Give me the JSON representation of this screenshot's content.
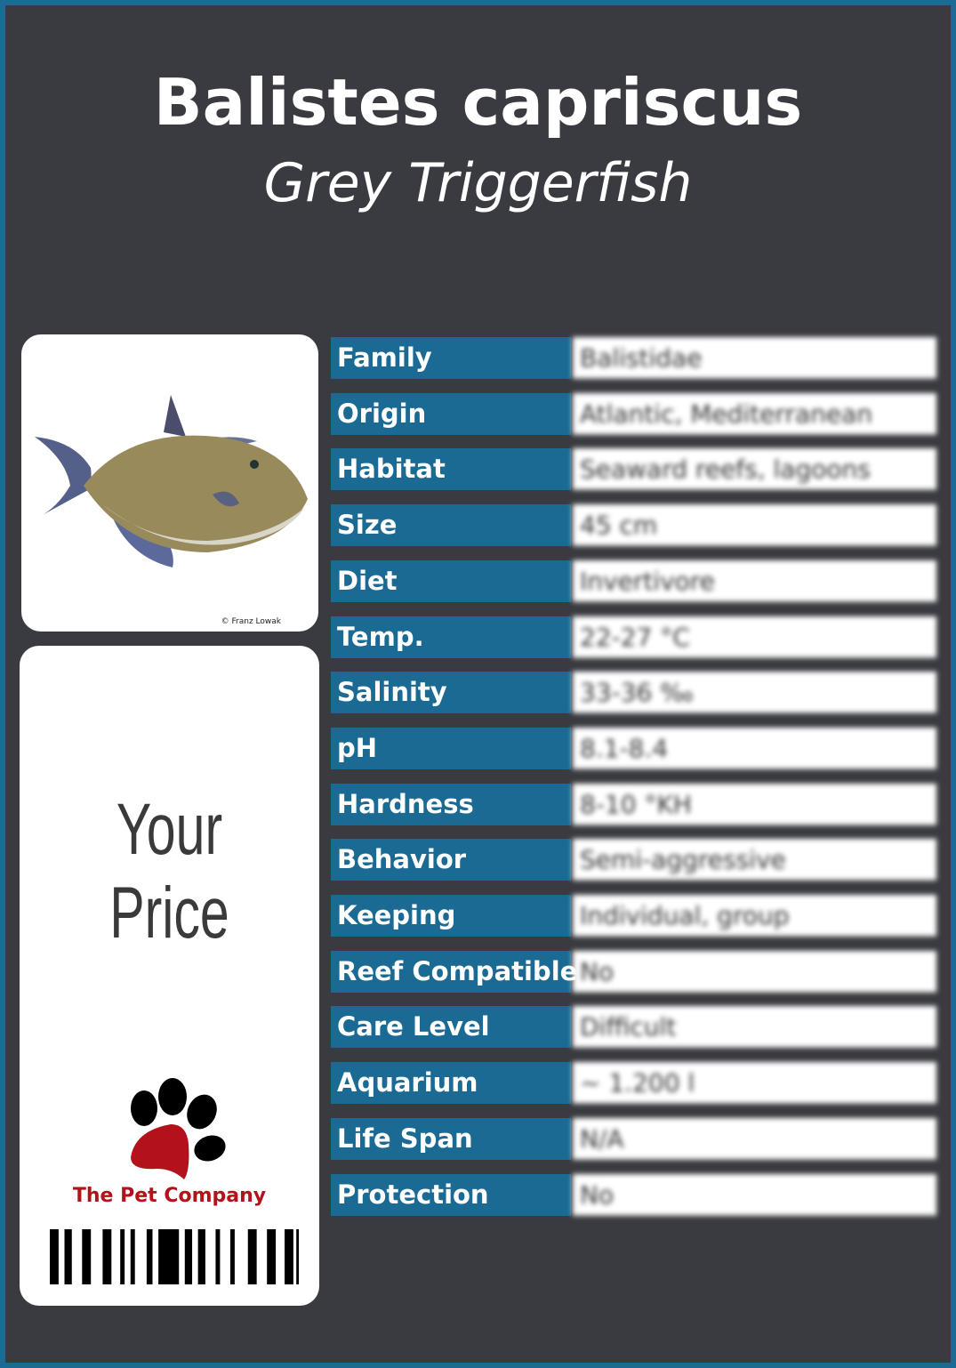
{
  "title": "Balistes capriscus",
  "subtitle": "Grey Triggerfish",
  "photo": {
    "credit": "© Franz Lowak",
    "icon": "fish-photo"
  },
  "price_label": "Your Price",
  "brand": {
    "name": "The Pet Company",
    "icon": "paw-logo",
    "colors": {
      "paw": "#000000",
      "pad": "#b3121b"
    }
  },
  "colors": {
    "border": "#1d6a95",
    "background": "#3a3b40",
    "label": "#1b6a94"
  },
  "rows": [
    {
      "label": "Family",
      "value": "Balistidae"
    },
    {
      "label": "Origin",
      "value": "Atlantic, Mediterranean"
    },
    {
      "label": "Habitat",
      "value": "Seaward reefs, lagoons"
    },
    {
      "label": "Size",
      "value": "45 cm"
    },
    {
      "label": "Diet",
      "value": "Invertivore"
    },
    {
      "label": "Temp.",
      "value": "22-27 °C"
    },
    {
      "label": "Salinity",
      "value": "33-36 ‰"
    },
    {
      "label": "pH",
      "value": "8.1-8.4"
    },
    {
      "label": "Hardness",
      "value": "8-10 °KH"
    },
    {
      "label": "Behavior",
      "value": "Semi-aggressive"
    },
    {
      "label": "Keeping",
      "value": "Individual, group"
    },
    {
      "label": "Reef Compatible",
      "value": "No"
    },
    {
      "label": "Care Level",
      "value": "Difficult"
    },
    {
      "label": "Aquarium",
      "value": "~ 1.200 l"
    },
    {
      "label": "Life Span",
      "value": "N/A"
    },
    {
      "label": "Protection",
      "value": "No"
    }
  ]
}
